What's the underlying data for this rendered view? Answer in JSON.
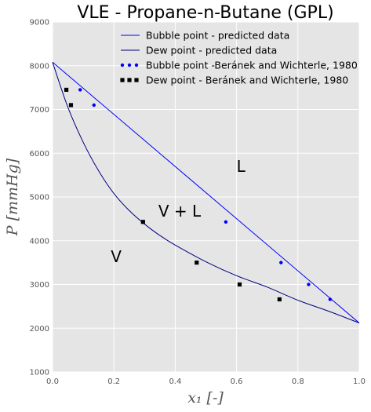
{
  "chart_data": {
    "type": "line",
    "title": "VLE - Propane-n-Butane (GPL)",
    "xlabel": "x₁ [-]",
    "ylabel": "P [mmHg]",
    "xlim": [
      0.0,
      1.0
    ],
    "ylim": [
      1000,
      9000
    ],
    "xticks": [
      "0.0",
      "0.2",
      "0.4",
      "0.6",
      "0.8",
      "1.0"
    ],
    "yticks": [
      "1000",
      "2000",
      "3000",
      "4000",
      "5000",
      "6000",
      "7000",
      "8000",
      "9000"
    ],
    "grid": true,
    "legend_position": "top-right",
    "colors": {
      "bubble": "#0000ff",
      "dew": "#000080",
      "dew_points": "#000000",
      "background": "#e5e5e5"
    },
    "series": [
      {
        "name": "Bubble point - predicted data",
        "kind": "line",
        "x": [
          0.0,
          1.0
        ],
        "y": [
          8080,
          2120
        ]
      },
      {
        "name": "Dew point - predicted data",
        "kind": "line",
        "x": [
          0.0,
          0.05,
          0.1,
          0.15,
          0.2,
          0.25,
          0.3,
          0.35,
          0.4,
          0.5,
          0.6,
          0.7,
          0.8,
          0.9,
          1.0
        ],
        "y": [
          8080,
          7050,
          6250,
          5600,
          5080,
          4690,
          4380,
          4120,
          3900,
          3520,
          3200,
          2940,
          2640,
          2390,
          2120
        ]
      },
      {
        "name": "Bubble point -Beránek and Wichterle, 1980",
        "kind": "scatter",
        "marker": "circle",
        "x": [
          0.09,
          0.135,
          0.565,
          0.745,
          0.835,
          0.905
        ],
        "y": [
          7450,
          7100,
          4430,
          3500,
          3000,
          2660
        ]
      },
      {
        "name": "Dew point - Beránek and Wichterle, 1980",
        "kind": "scatter",
        "marker": "square",
        "x": [
          0.045,
          0.06,
          0.295,
          0.47,
          0.61,
          0.74
        ],
        "y": [
          7450,
          7100,
          4430,
          3500,
          3000,
          2660
        ]
      }
    ],
    "annotations": [
      {
        "text": "L",
        "x": 0.6,
        "y": 5700
      },
      {
        "text": "V + L",
        "x": 0.345,
        "y": 4680
      },
      {
        "text": "V",
        "x": 0.19,
        "y": 3640
      }
    ]
  }
}
